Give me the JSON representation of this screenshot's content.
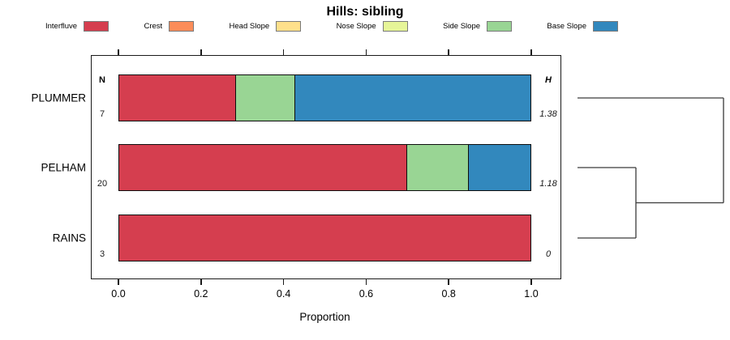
{
  "title": "Hills: sibling",
  "legend": {
    "items": [
      {
        "label": "Interfluve",
        "color": "#d53e4f"
      },
      {
        "label": "Crest",
        "color": "#fc8d59"
      },
      {
        "label": "Head Slope",
        "color": "#fee08b"
      },
      {
        "label": "Nose Slope",
        "color": "#e6f598"
      },
      {
        "label": "Side Slope",
        "color": "#99d594"
      },
      {
        "label": "Base Slope",
        "color": "#3288bd"
      }
    ]
  },
  "chart_data": {
    "type": "stacked-bar-horizontal",
    "title": "Hills: sibling",
    "xlabel": "Proportion",
    "xlim": [
      0,
      1
    ],
    "x_ticks": [
      "0.0",
      "0.2",
      "0.4",
      "0.6",
      "0.8",
      "1.0"
    ],
    "n_header": "N",
    "h_header": "H",
    "rows": [
      {
        "label": "PLUMMER",
        "n": "7",
        "h": "1.38",
        "segments": [
          {
            "name": "Interfluve",
            "value": 0.286
          },
          {
            "name": "Side Slope",
            "value": 0.143
          },
          {
            "name": "Base Slope",
            "value": 0.571
          }
        ]
      },
      {
        "label": "PELHAM",
        "n": "20",
        "h": "1.18",
        "segments": [
          {
            "name": "Interfluve",
            "value": 0.7
          },
          {
            "name": "Side Slope",
            "value": 0.15
          },
          {
            "name": "Base Slope",
            "value": 0.15
          }
        ]
      },
      {
        "label": "RAINS",
        "n": "3",
        "h": "0",
        "segments": [
          {
            "name": "Interfluve",
            "value": 1.0
          }
        ]
      }
    ],
    "dendrogram": {
      "merges": [
        {
          "children": [
            "PELHAM",
            "RAINS"
          ],
          "relative_height": 0.4
        },
        {
          "children": [
            "PLUMMER",
            "PELHAM|RAINS"
          ],
          "relative_height": 1.0
        }
      ]
    }
  }
}
